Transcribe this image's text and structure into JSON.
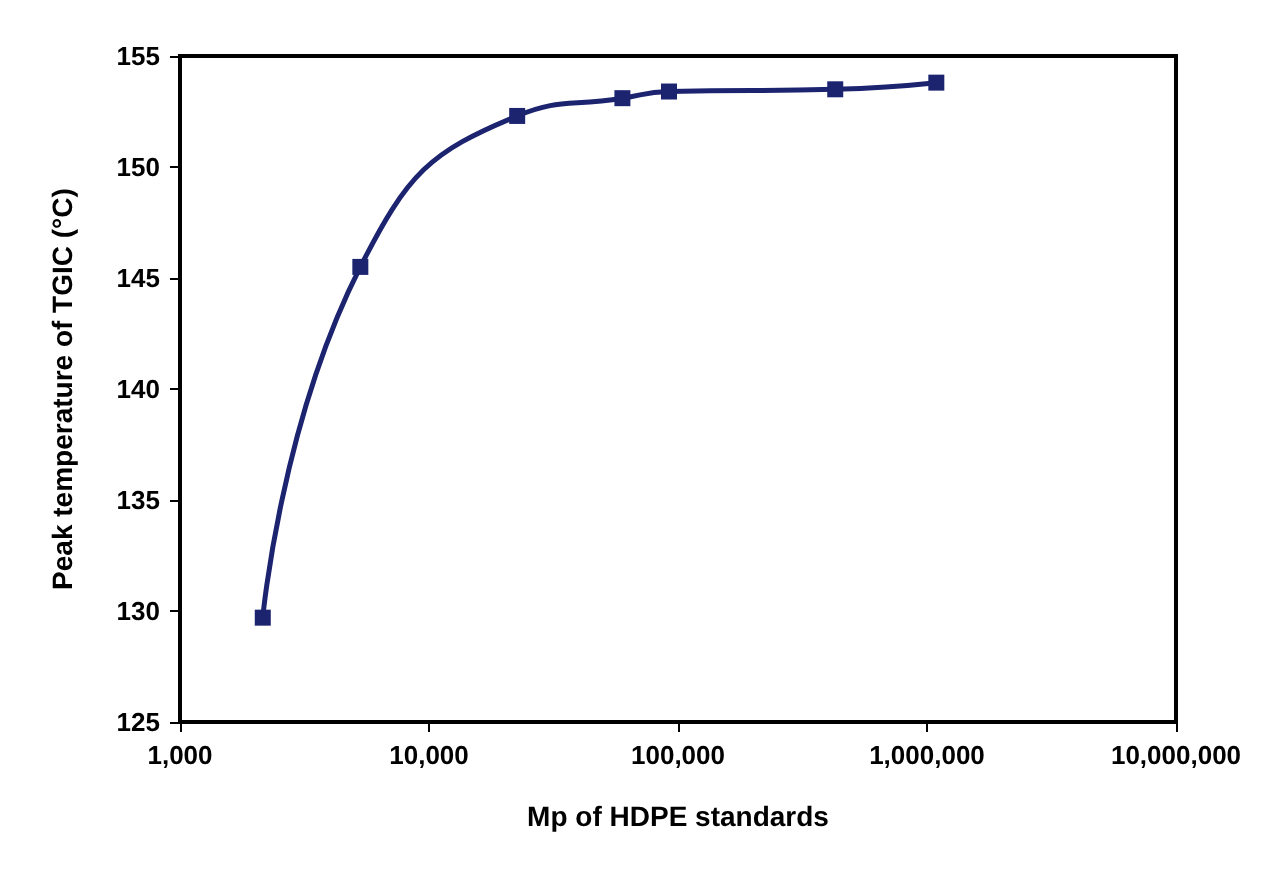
{
  "chart_data": {
    "type": "line",
    "xlabel": "Mp of HDPE standards",
    "ylabel": "Peak temperature of TGIC (°C)",
    "log": "x",
    "x": [
      2150,
      5300,
      22600,
      59800,
      92000,
      428000,
      1090000
    ],
    "series": [
      {
        "color": "#1c2470",
        "values": [
          129.7,
          145.5,
          152.3,
          153.1,
          153.4,
          153.5,
          153.8
        ]
      }
    ],
    "xlim": [
      1000,
      10000000
    ],
    "xticks": [
      {
        "value": 1000,
        "label": "1,000"
      },
      {
        "value": 10000,
        "label": "10,000"
      },
      {
        "value": 100000,
        "label": "100,000"
      },
      {
        "value": 1000000,
        "label": "1,000,000"
      },
      {
        "value": 10000000,
        "label": "10,000,000"
      }
    ],
    "ylim": [
      125,
      155
    ],
    "yticks": [
      125,
      130,
      135,
      140,
      145,
      150,
      155
    ],
    "grid": false,
    "marker": "square",
    "line_style": "solid"
  }
}
